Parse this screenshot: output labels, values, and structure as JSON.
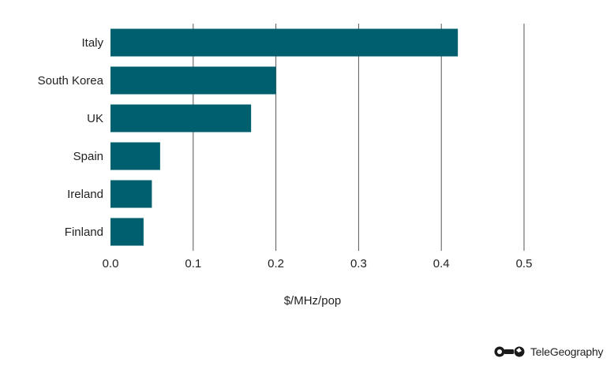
{
  "chart_data": {
    "type": "bar",
    "orientation": "horizontal",
    "categories": [
      "Italy",
      "South Korea",
      "UK",
      "Spain",
      "Ireland",
      "Finland"
    ],
    "values": [
      0.42,
      0.2,
      0.17,
      0.06,
      0.05,
      0.04
    ],
    "xlabel": "$/MHz/pop",
    "xlim": [
      0,
      0.5
    ],
    "xticks": [
      "0.0",
      "0.1",
      "0.2",
      "0.3",
      "0.4",
      "0.5"
    ],
    "grid": "vertical",
    "bar_color": "#005f6f"
  },
  "brand": {
    "name": "TeleGeography"
  }
}
